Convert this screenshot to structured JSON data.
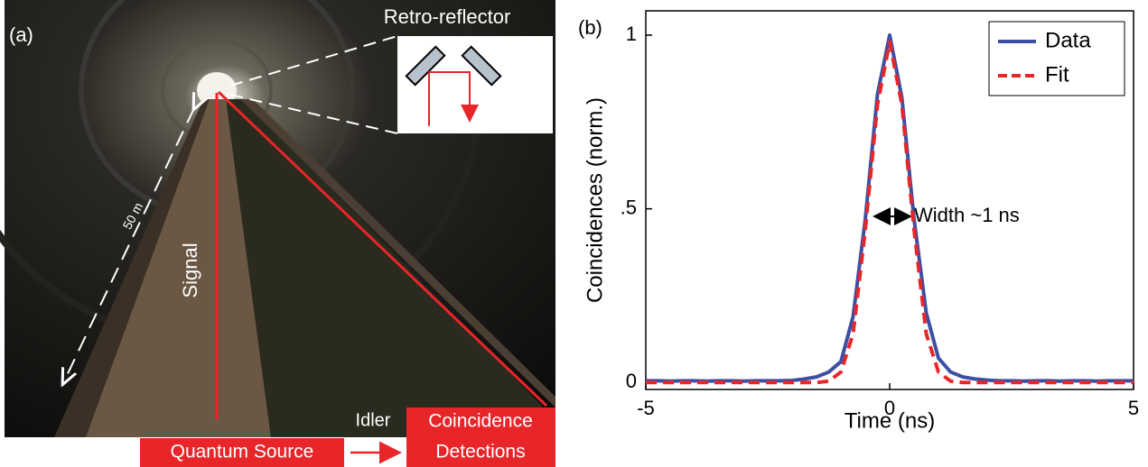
{
  "photo": {
    "label": "(a)",
    "reflector": "Retro-reflector",
    "distance": "50 m",
    "signal": "Signal",
    "idler": "Idler",
    "source": "Quantum Source",
    "detections": [
      "Coincidence",
      "Detections"
    ]
  },
  "chart_data": {
    "type": "line",
    "label": "(b)",
    "xlabel": "Time (ns)",
    "ylabel": "Coincidences (norm.)",
    "annotation": "Width ~1 ns",
    "x": [
      -5,
      -4.75,
      -4.5,
      -4.25,
      -4,
      -3.75,
      -3.5,
      -3.25,
      -3,
      -2.75,
      -2.5,
      -2.25,
      -2,
      -1.75,
      -1.5,
      -1.25,
      -1,
      -0.75,
      -0.5,
      -0.25,
      0,
      0.25,
      0.5,
      0.75,
      1,
      1.25,
      1.5,
      1.75,
      2,
      2.25,
      2.5,
      2.75,
      3,
      3.25,
      3.5,
      3.75,
      4,
      4.25,
      4.5,
      4.75,
      5
    ],
    "series": [
      {
        "name": "Data",
        "color": "#3b4fa3",
        "dash": false,
        "values": [
          0.005,
          0.005,
          0.004,
          0.005,
          0.005,
          0.004,
          0.005,
          0.005,
          0.004,
          0.005,
          0.005,
          0.005,
          0.006,
          0.01,
          0.016,
          0.03,
          0.06,
          0.19,
          0.47,
          0.83,
          1,
          0.82,
          0.47,
          0.2,
          0.07,
          0.03,
          0.016,
          0.01,
          0.007,
          0.005,
          0.005,
          0.004,
          0.005,
          0.005,
          0.004,
          0.005,
          0.005,
          0.004,
          0.005,
          0.005,
          0.005
        ]
      },
      {
        "name": "Fit",
        "color": "#e8262a",
        "dash": true,
        "values": [
          0,
          0,
          0,
          0,
          0,
          0,
          0,
          0,
          0,
          0,
          0,
          0,
          0,
          0,
          0,
          0.004,
          0.03,
          0.14,
          0.44,
          0.8,
          0.98,
          0.8,
          0.44,
          0.14,
          0.03,
          0.004,
          0,
          0,
          0,
          0,
          0,
          0,
          0,
          0,
          0,
          0,
          0,
          0,
          0,
          0,
          0
        ]
      }
    ],
    "xlim": [
      -5,
      5
    ],
    "ylim": [
      -0.02,
      1.07
    ],
    "xticks": [
      -5,
      0,
      5
    ],
    "yticks": [
      0,
      {
        "value": 0.5,
        "label": ".5"
      },
      1
    ],
    "legend": "upper right"
  }
}
